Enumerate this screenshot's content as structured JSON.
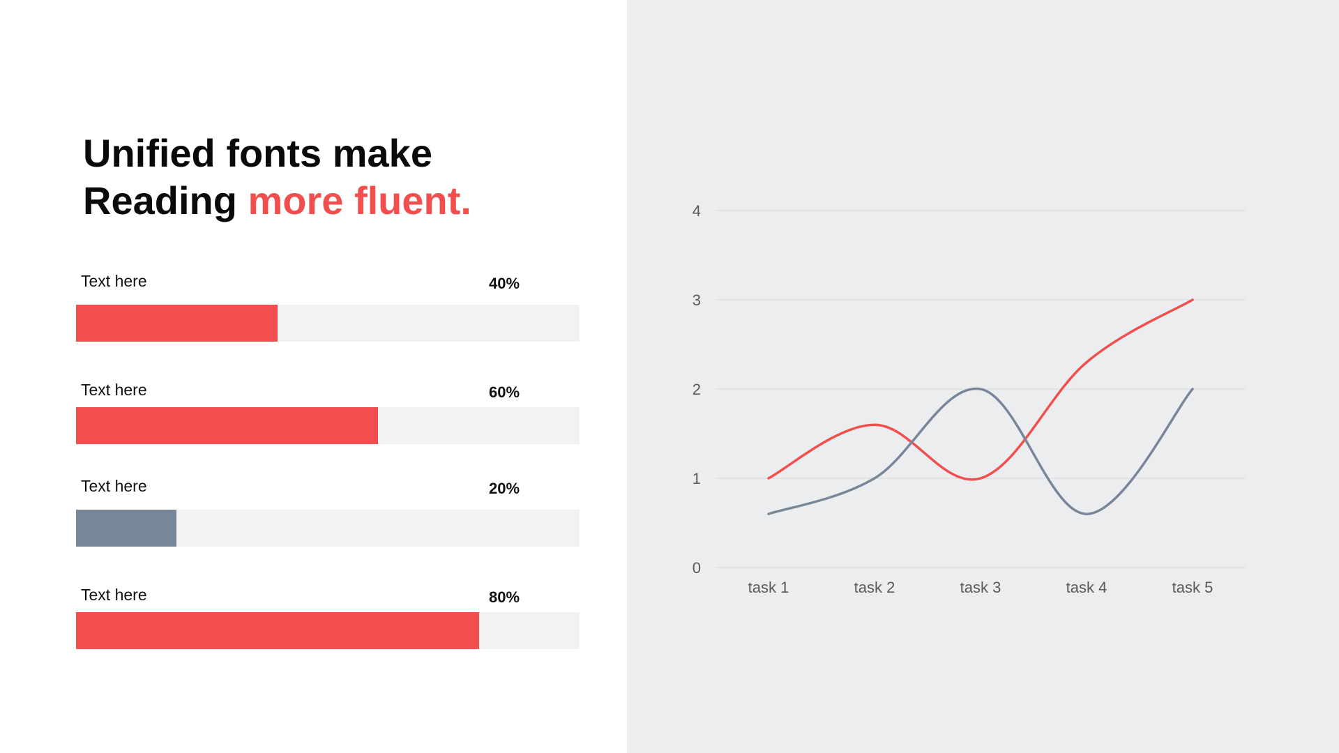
{
  "headline": {
    "line1": "Unified fonts make",
    "line2_prefix": "Reading ",
    "line2_accent": "more fluent."
  },
  "colors": {
    "accent": "#f24e4e",
    "secondary": "#78869a",
    "track": "#f2f2f2",
    "panel": "#ecedef",
    "grid": "#d9d9d9"
  },
  "progress_bars": [
    {
      "label": "Text here",
      "value_text": "40%",
      "percent": 40,
      "color": "#f24e4e"
    },
    {
      "label": "Text here",
      "value_text": "60%",
      "percent": 60,
      "color": "#f24e4e"
    },
    {
      "label": "Text here",
      "value_text": "20%",
      "percent": 20,
      "color": "#78869a"
    },
    {
      "label": "Text here",
      "value_text": "80%",
      "percent": 80,
      "color": "#f24e4e"
    }
  ],
  "chart_data": {
    "type": "line",
    "title": "",
    "xlabel": "",
    "ylabel": "",
    "categories": [
      "task 1",
      "task 2",
      "task 3",
      "task 4",
      "task 5"
    ],
    "y_ticks": [
      "0",
      "1",
      "2",
      "3",
      "4"
    ],
    "ylim": [
      0,
      4
    ],
    "grid": true,
    "legend": "none",
    "smooth": true,
    "series": [
      {
        "values": [
          1,
          1.6,
          1,
          2.3,
          3
        ],
        "color": "#f24e4e"
      },
      {
        "values": [
          0.6,
          1,
          2,
          0.6,
          2
        ],
        "color": "#78869a"
      }
    ]
  }
}
